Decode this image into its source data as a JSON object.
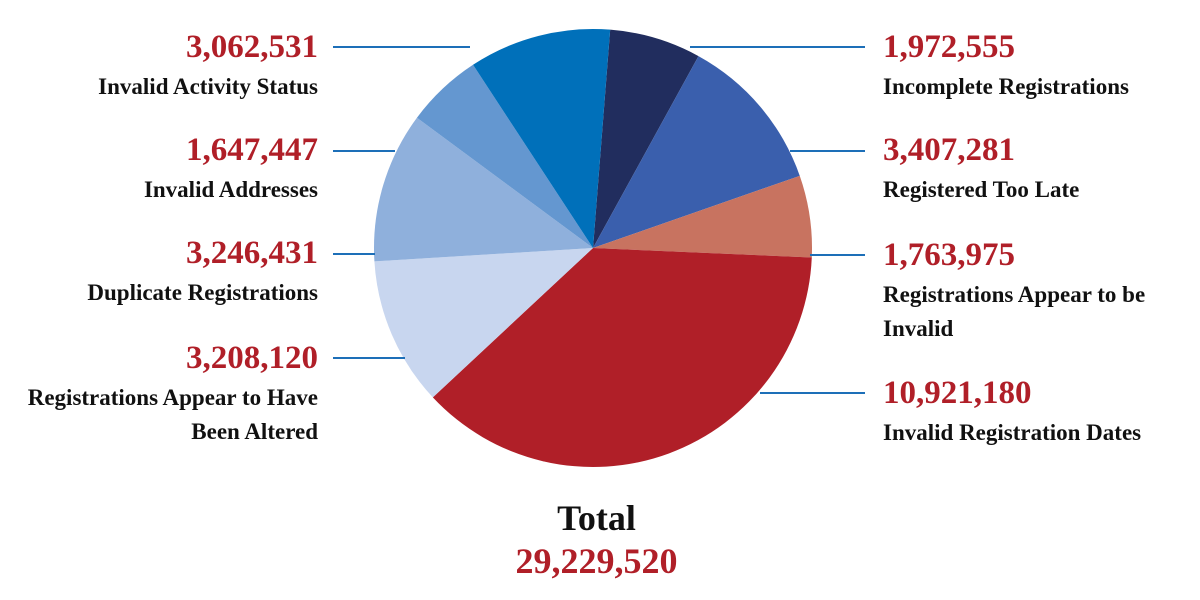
{
  "chart_data": {
    "type": "pie",
    "categories": [
      "Incomplete Registrations",
      "Registered Too Late",
      "Registrations Appear to be Invalid",
      "Invalid Registration Dates",
      "Registrations Appear to Have Been Altered",
      "Duplicate Registrations",
      "Invalid Addresses",
      "Invalid Activity Status"
    ],
    "values": [
      1972555,
      3407281,
      1763975,
      10921180,
      3208120,
      3246431,
      1647447,
      3062531
    ],
    "value_labels": [
      "1,972,555",
      "3,407,281",
      "1,763,975",
      "10,921,180",
      "3,208,120",
      "3,246,431",
      "1,647,447",
      "3,062,531"
    ],
    "colors": [
      "#212d5e",
      "#3a5fad",
      "#c87360",
      "#b01f28",
      "#c8d6ef",
      "#8fb0dc",
      "#6497d0",
      "#0070ba"
    ],
    "total": {
      "title": "Total",
      "value_label": "29,229,520"
    }
  }
}
